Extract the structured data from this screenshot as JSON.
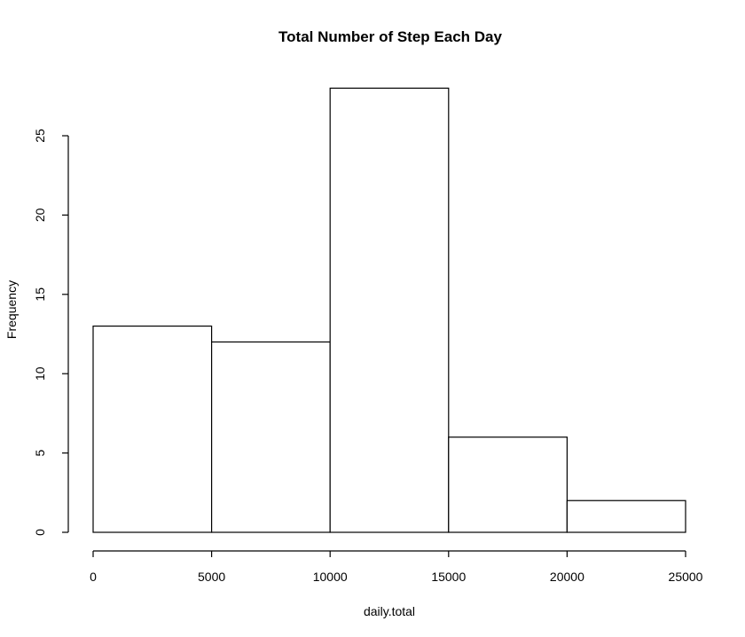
{
  "chart_data": {
    "type": "bar",
    "title": "Total Number of Step Each Day",
    "xlabel": "daily.total",
    "ylabel": "Frequency",
    "bins": [
      {
        "from": 0,
        "to": 5000,
        "value": 13
      },
      {
        "from": 5000,
        "to": 10000,
        "value": 12
      },
      {
        "from": 10000,
        "to": 15000,
        "value": 28
      },
      {
        "from": 15000,
        "to": 20000,
        "value": 6
      },
      {
        "from": 20000,
        "to": 25000,
        "value": 2
      }
    ],
    "xticks": [
      "0",
      "5000",
      "10000",
      "15000",
      "20000",
      "25000"
    ],
    "yticks": [
      "0",
      "5",
      "10",
      "15",
      "20",
      "25"
    ],
    "xlim": [
      0,
      25000
    ],
    "ylim": [
      0,
      28
    ],
    "grid": false,
    "legend": "none"
  }
}
